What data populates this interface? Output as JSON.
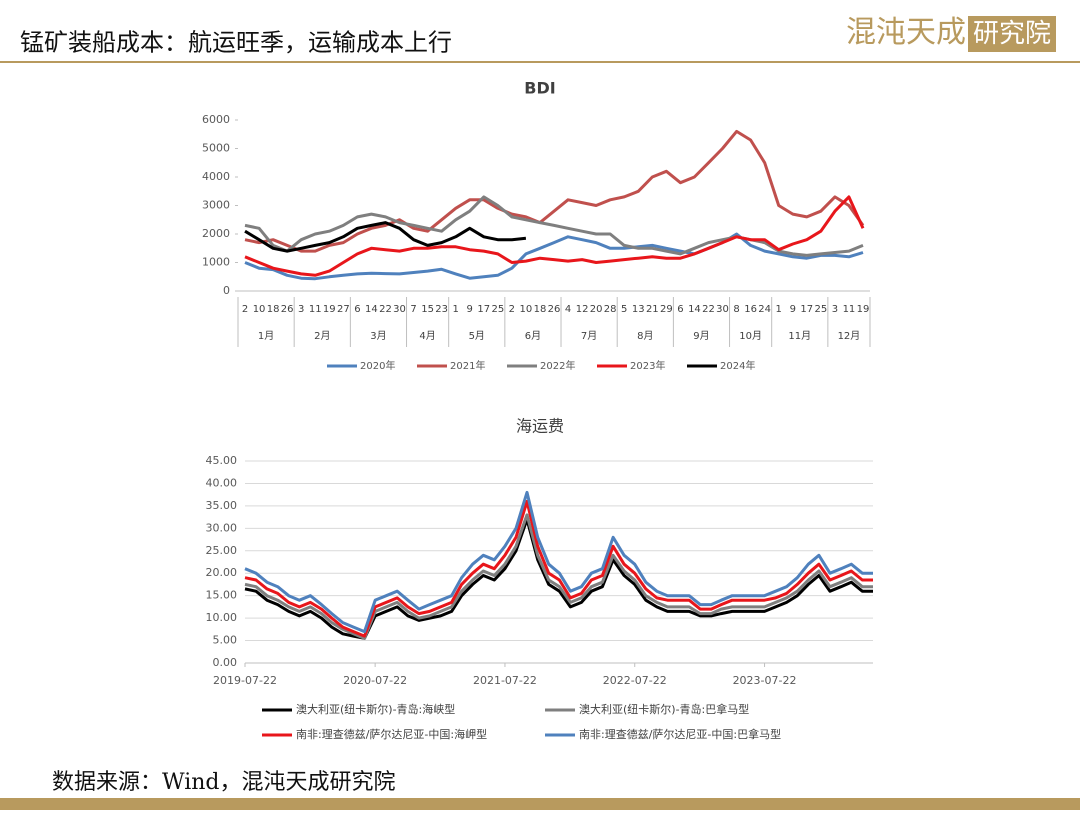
{
  "header": {
    "title": "锰矿装船成本：航运旺季，运输成本上行",
    "logo_left": "混沌天成",
    "logo_right": "研究院"
  },
  "source": "数据来源：Wind，混沌天成研究院",
  "chart_data": [
    {
      "type": "line",
      "title": "BDI",
      "months": [
        {
          "label": "1月",
          "days": [
            "2",
            "10",
            "18",
            "26"
          ]
        },
        {
          "label": "2月",
          "days": [
            "3",
            "11",
            "19",
            "27"
          ]
        },
        {
          "label": "3月",
          "days": [
            "6",
            "14",
            "22",
            "30"
          ]
        },
        {
          "label": "4月",
          "days": [
            "7",
            "15",
            "23"
          ]
        },
        {
          "label": "5月",
          "days": [
            "1",
            "9",
            "17",
            "25"
          ]
        },
        {
          "label": "6月",
          "days": [
            "2",
            "10",
            "18",
            "26"
          ]
        },
        {
          "label": "7月",
          "days": [
            "4",
            "12",
            "20",
            "28"
          ]
        },
        {
          "label": "8月",
          "days": [
            "5",
            "13",
            "21",
            "29"
          ]
        },
        {
          "label": "9月",
          "days": [
            "6",
            "14",
            "22",
            "30"
          ]
        },
        {
          "label": "10月",
          "days": [
            "8",
            "16",
            "24"
          ]
        },
        {
          "label": "11月",
          "days": [
            "1",
            "9",
            "17",
            "25"
          ]
        },
        {
          "label": "12月",
          "days": [
            "3",
            "11",
            "19"
          ]
        }
      ],
      "ylim": [
        0,
        6000
      ],
      "yticks": [
        0,
        1000,
        2000,
        3000,
        4000,
        5000,
        6000
      ],
      "series": [
        {
          "name": "2020年",
          "color": "#4f81bd",
          "values": [
            1000,
            800,
            750,
            550,
            450,
            430,
            500,
            550,
            600,
            620,
            610,
            600,
            650,
            700,
            760,
            600,
            450,
            500,
            550,
            800,
            1300,
            1500,
            1700,
            1900,
            1800,
            1700,
            1500,
            1500,
            1550,
            1600,
            1500,
            1400,
            1300,
            1500,
            1700,
            2000,
            1600,
            1400,
            1300,
            1200,
            1150,
            1250,
            1250,
            1200,
            1350
          ]
        },
        {
          "name": "2021年",
          "color": "#c0504d",
          "values": [
            1800,
            1700,
            1800,
            1600,
            1400,
            1400,
            1600,
            1700,
            2000,
            2200,
            2300,
            2500,
            2200,
            2100,
            2500,
            2900,
            3200,
            3200,
            2900,
            2700,
            2600,
            2400,
            2800,
            3200,
            3100,
            3000,
            3200,
            3300,
            3500,
            4000,
            4200,
            3800,
            4000,
            4500,
            5000,
            5600,
            5300,
            4500,
            3000,
            2700,
            2600,
            2800,
            3300,
            3000,
            2300
          ]
        },
        {
          "name": "2022年",
          "color": "#7f7f7f",
          "values": [
            2300,
            2200,
            1600,
            1400,
            1800,
            2000,
            2100,
            2300,
            2600,
            2700,
            2600,
            2400,
            2300,
            2200,
            2100,
            2500,
            2800,
            3300,
            3000,
            2600,
            2500,
            2400,
            2300,
            2200,
            2100,
            2000,
            2000,
            1600,
            1500,
            1500,
            1400,
            1300,
            1500,
            1700,
            1800,
            1900,
            1800,
            1700,
            1400,
            1300,
            1250,
            1300,
            1350,
            1400,
            1600
          ]
        },
        {
          "name": "2023年",
          "color": "#e8161b",
          "values": [
            1200,
            1000,
            800,
            700,
            600,
            550,
            700,
            1000,
            1300,
            1500,
            1450,
            1400,
            1500,
            1500,
            1550,
            1550,
            1450,
            1400,
            1300,
            1000,
            1050,
            1150,
            1100,
            1050,
            1100,
            1000,
            1050,
            1100,
            1150,
            1200,
            1150,
            1150,
            1300,
            1500,
            1700,
            1900,
            1800,
            1800,
            1450,
            1650,
            1800,
            2100,
            2800,
            3300,
            2200
          ]
        },
        {
          "name": "2024年",
          "color": "#000000",
          "values": [
            2100,
            1800,
            1500,
            1400,
            1500,
            1600,
            1700,
            1900,
            2200,
            2300,
            2400,
            2200,
            1800,
            1600,
            1700,
            1900,
            2200,
            1900,
            1800,
            1800,
            1850,
            null,
            null,
            null,
            null,
            null,
            null,
            null,
            null,
            null,
            null,
            null,
            null,
            null,
            null,
            null,
            null,
            null,
            null,
            null,
            null,
            null,
            null,
            null,
            null
          ]
        }
      ]
    },
    {
      "type": "line",
      "title": "海运费",
      "x": [
        "2019-07-22",
        "2019-08-22",
        "2019-09-22",
        "2019-10-22",
        "2019-11-22",
        "2019-12-22",
        "2020-01-22",
        "2020-02-22",
        "2020-03-22",
        "2020-04-22",
        "2020-05-22",
        "2020-06-22",
        "2020-07-22",
        "2020-08-22",
        "2020-09-22",
        "2020-10-22",
        "2020-11-22",
        "2020-12-22",
        "2021-01-22",
        "2021-02-22",
        "2021-03-22",
        "2021-04-22",
        "2021-05-22",
        "2021-06-22",
        "2021-07-22",
        "2021-08-22",
        "2021-09-22",
        "2021-10-22",
        "2021-11-22",
        "2021-12-22",
        "2022-01-22",
        "2022-02-22",
        "2022-03-22",
        "2022-04-22",
        "2022-05-22",
        "2022-06-22",
        "2022-07-22",
        "2022-08-22",
        "2022-09-22",
        "2022-10-22",
        "2022-11-22",
        "2022-12-22",
        "2023-01-22",
        "2023-02-22",
        "2023-03-22",
        "2023-04-22",
        "2023-05-22",
        "2023-06-22",
        "2023-07-22",
        "2023-08-22",
        "2023-09-22",
        "2023-10-22",
        "2023-11-22",
        "2023-12-22",
        "2024-01-22",
        "2024-02-22",
        "2024-03-22",
        "2024-04-22",
        "2024-05-22"
      ],
      "xlim": [
        "2019-07-22",
        "2024-05-22"
      ],
      "xticks": [
        "2019-07-22",
        "2020-07-22",
        "2021-07-22",
        "2022-07-22",
        "2023-07-22"
      ],
      "ylim": [
        0,
        45
      ],
      "yticks": [
        {
          "value": 0,
          "label": "0.00"
        },
        {
          "value": 5,
          "label": "5.00"
        },
        {
          "value": 10,
          "label": "10.00"
        },
        {
          "value": 15,
          "label": "15.00"
        },
        {
          "value": 20,
          "label": "20.00"
        },
        {
          "value": 25,
          "label": "25.00"
        },
        {
          "value": 30,
          "label": "30.00"
        },
        {
          "value": 35,
          "label": "35.00"
        },
        {
          "value": 40,
          "label": "40.00"
        },
        {
          "value": 45,
          "label": "45.00"
        }
      ],
      "grid": true,
      "series": [
        {
          "name": "澳大利亚(纽卡斯尔)-青岛:海峡型",
          "color": "#000000",
          "values": [
            16.5,
            16,
            14,
            13,
            11.5,
            10.5,
            11.5,
            10,
            8,
            6.5,
            6,
            5.5,
            10.5,
            11.5,
            12.5,
            10.5,
            9.5,
            10,
            10.5,
            11.5,
            15,
            17.5,
            19.5,
            18.5,
            21,
            25,
            32,
            23,
            17.5,
            16,
            12.5,
            13.5,
            16,
            17,
            23,
            19.5,
            17.5,
            14,
            12.5,
            11.5,
            11.5,
            11.5,
            10.5,
            10.5,
            11,
            11.5,
            11.5,
            11.5,
            11.5,
            12.5,
            13.5,
            15,
            17.5,
            19.5,
            16,
            17,
            18,
            16,
            16
          ]
        },
        {
          "name": "澳大利亚(纽卡斯尔)-青岛:巴拿马型",
          "color": "#7f7f7f",
          "values": [
            17.5,
            17,
            15,
            14,
            12.5,
            11.5,
            12.5,
            11,
            9,
            7.5,
            6.5,
            5.5,
            11.5,
            12.5,
            13.5,
            11.5,
            10,
            10.5,
            11.5,
            12.5,
            16,
            18.5,
            20.5,
            19.5,
            22,
            26,
            33,
            24,
            18.5,
            17,
            13.5,
            14.5,
            17,
            18,
            24,
            20.5,
            18.5,
            15,
            13.5,
            12.5,
            12.5,
            12.5,
            11,
            11,
            12,
            12.5,
            12.5,
            12.5,
            12.5,
            13.5,
            14.5,
            16,
            18.5,
            20.5,
            17,
            18,
            19,
            17,
            17
          ]
        },
        {
          "name": "南非:理查德兹/萨尔达尼亚-中国:海岬型",
          "color": "#e8161b",
          "values": [
            19,
            18.5,
            16.5,
            15.5,
            13.5,
            12.5,
            13.5,
            12,
            10,
            8,
            7,
            6,
            12.5,
            13.5,
            14.5,
            12.5,
            11,
            11.5,
            12.5,
            13.5,
            17.5,
            20,
            22,
            21,
            24,
            28,
            36,
            26,
            20,
            18.5,
            14.5,
            15.5,
            18.5,
            19.5,
            26,
            22,
            20,
            16.5,
            14.5,
            14,
            14,
            14,
            12,
            12,
            13,
            14,
            14,
            14,
            14,
            14.5,
            15.5,
            17.5,
            20,
            22,
            18.5,
            19.5,
            20.5,
            18.5,
            18.5
          ]
        },
        {
          "name": "南非:理查德兹/萨尔达尼亚-中国:巴拿马型",
          "color": "#4f81bd",
          "values": [
            21,
            20,
            18,
            17,
            15,
            14,
            15,
            13,
            11,
            9,
            8,
            7,
            14,
            15,
            16,
            14,
            12,
            13,
            14,
            15,
            19,
            22,
            24,
            23,
            26,
            30,
            38,
            28,
            22,
            20,
            16,
            17,
            20,
            21,
            28,
            24,
            22,
            18,
            16,
            15,
            15,
            15,
            13,
            13,
            14,
            15,
            15,
            15,
            15,
            16,
            17,
            19,
            22,
            24,
            20,
            21,
            22,
            20,
            20
          ]
        }
      ]
    }
  ]
}
